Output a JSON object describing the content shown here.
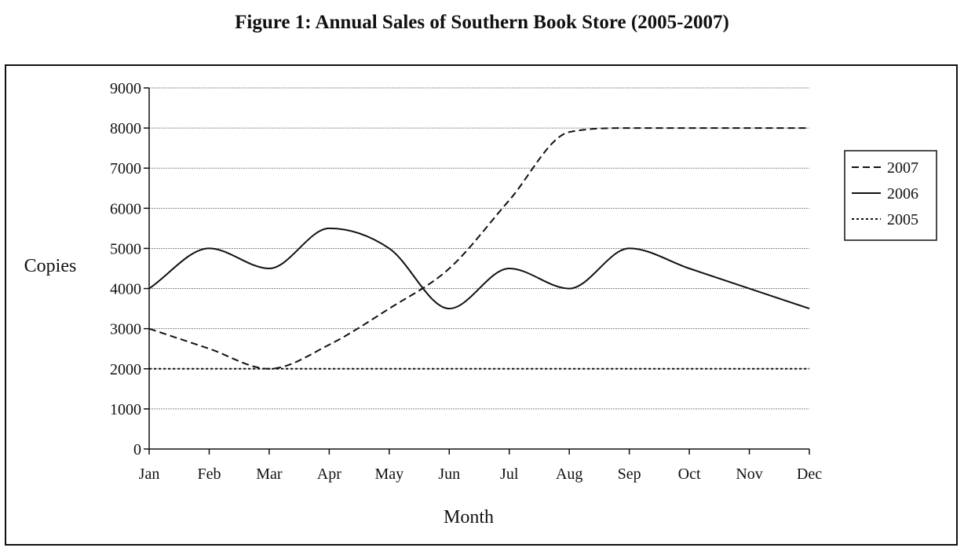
{
  "chart_data": {
    "type": "line",
    "title": "Figure 1:  Annual Sales of Southern Book Store (2005-2007)",
    "xlabel": "Month",
    "ylabel": "Copies",
    "categories": [
      "Jan",
      "Feb",
      "Mar",
      "Apr",
      "May",
      "Jun",
      "Jul",
      "Aug",
      "Sep",
      "Oct",
      "Nov",
      "Dec"
    ],
    "ylim": [
      0,
      9000
    ],
    "yticks": [
      "0",
      "1000",
      "2000",
      "3000",
      "4000",
      "5000",
      "6000",
      "7000",
      "8000",
      "9000"
    ],
    "grid": true,
    "legend_position": "right",
    "series": [
      {
        "name": "2007",
        "style": "dashed",
        "values": [
          3000,
          2500,
          2000,
          2600,
          3500,
          4500,
          6200,
          7900,
          8000,
          8000,
          8000,
          8000
        ]
      },
      {
        "name": "2006",
        "style": "solid",
        "values": [
          4000,
          5000,
          4500,
          5500,
          5000,
          3500,
          4500,
          4000,
          5000,
          4500,
          4000,
          3500
        ]
      },
      {
        "name": "2005",
        "style": "dotted",
        "values": [
          2000,
          2000,
          2000,
          2000,
          2000,
          2000,
          2000,
          2000,
          2000,
          2000,
          2000,
          2000
        ]
      }
    ]
  },
  "colors": {
    "line": "#111111",
    "grid": "#8a8a8a",
    "background": "#ffffff"
  }
}
